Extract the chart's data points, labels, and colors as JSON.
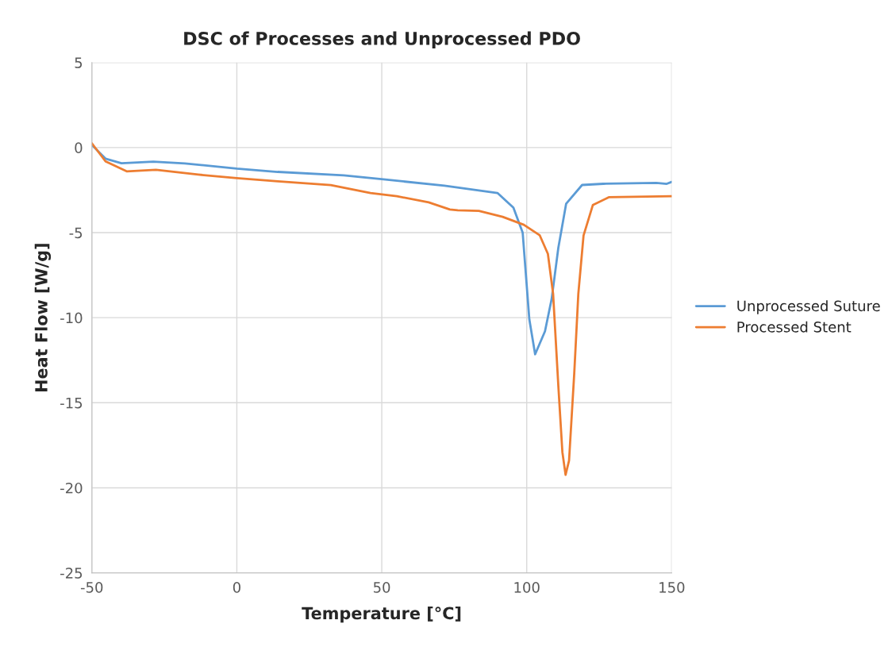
{
  "chart_data": {
    "type": "line",
    "title": "DSC of Processes and Unprocessed PDO",
    "xlabel": "Temperature [°C]",
    "ylabel": "Heat Flow [W/g]",
    "xlim": [
      -50,
      150
    ],
    "xticks": [
      -50,
      0,
      50,
      100,
      150
    ],
    "ylim": [
      -25,
      5
    ],
    "yticks": [
      -25,
      -20,
      -15,
      -10,
      -5,
      0,
      5
    ],
    "grid": true,
    "legend": "right",
    "marker": "none",
    "line_style": "solid",
    "series": [
      {
        "name": "Unprocessed Suture",
        "color": "#5b9bd5",
        "x": [
          -50,
          -45.3,
          -39.8,
          -28.8,
          -17.9,
          0,
          14.1,
          36.9,
          50.6,
          71.6,
          89.9,
          95.4,
          98.6,
          99.5,
          100.9,
          102.9,
          106.3,
          108.6,
          110.9,
          113.6,
          119.1,
          126.4,
          144.7,
          148.3,
          150
        ],
        "values": [
          0.15,
          -0.65,
          -0.92,
          -0.83,
          -0.93,
          -1.24,
          -1.43,
          -1.63,
          -1.87,
          -2.24,
          -2.67,
          -3.53,
          -5.0,
          -7.0,
          -10.1,
          -12.15,
          -10.8,
          -8.9,
          -5.9,
          -3.3,
          -2.2,
          -2.13,
          -2.08,
          -2.13,
          -2.02
        ]
      },
      {
        "name": "Processed Stent",
        "color": "#ed7d31",
        "x": [
          -50,
          -45.3,
          -38,
          -27.9,
          -13.3,
          0,
          14.1,
          32.4,
          46.1,
          55.2,
          66.2,
          73.5,
          76.2,
          83.5,
          91.7,
          99.0,
          104.5,
          107.3,
          109.1,
          110.9,
          112.3,
          113.4,
          114.6,
          116.4,
          117.8,
          119.6,
          122.8,
          128.3,
          150
        ],
        "values": [
          0.25,
          -0.81,
          -1.4,
          -1.31,
          -1.59,
          -1.8,
          -1.98,
          -2.21,
          -2.67,
          -2.86,
          -3.22,
          -3.64,
          -3.69,
          -3.72,
          -4.07,
          -4.54,
          -5.16,
          -6.25,
          -8.59,
          -14.0,
          -17.9,
          -19.24,
          -18.4,
          -13.25,
          -8.6,
          -5.17,
          -3.38,
          -2.92,
          -2.86
        ]
      }
    ]
  }
}
